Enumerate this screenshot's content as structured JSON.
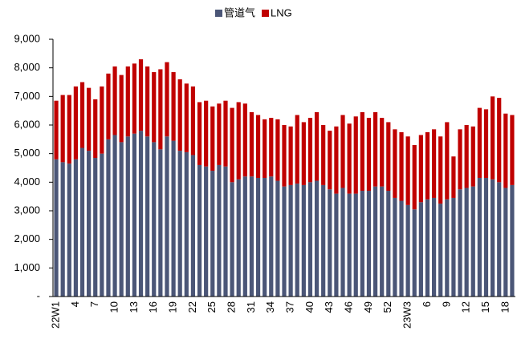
{
  "chart_data": {
    "type": "stacked_bar",
    "categories": [
      "22W1",
      null,
      null,
      "4",
      null,
      null,
      "7",
      null,
      null,
      "10",
      null,
      null,
      "13",
      null,
      null,
      "16",
      null,
      null,
      "19",
      null,
      null,
      "22",
      null,
      null,
      "25",
      null,
      null,
      "28",
      null,
      null,
      "31",
      null,
      null,
      "34",
      null,
      null,
      "37",
      null,
      null,
      "40",
      null,
      null,
      "43",
      null,
      null,
      "46",
      null,
      null,
      "49",
      null,
      null,
      "52",
      null,
      null,
      "23W3",
      null,
      null,
      "6",
      null,
      null,
      "9",
      null,
      null,
      "12",
      null,
      null,
      "15",
      null,
      null,
      "18",
      null
    ],
    "series": [
      {
        "name": "管道气",
        "color": "#4b5677",
        "values": [
          4800,
          4700,
          4650,
          4800,
          5200,
          5100,
          4850,
          5000,
          5500,
          5650,
          5400,
          5600,
          5700,
          5800,
          5600,
          5400,
          5150,
          5600,
          5450,
          5100,
          5050,
          4950,
          4600,
          4550,
          4400,
          4600,
          4550,
          4000,
          4100,
          4200,
          4200,
          4150,
          4150,
          4200,
          4050,
          3850,
          3900,
          3950,
          3900,
          4000,
          4050,
          3900,
          3750,
          3600,
          3800,
          3600,
          3600,
          3700,
          3700,
          3850,
          3850,
          3700,
          3450,
          3350,
          3200,
          3050,
          3300,
          3400,
          3450,
          3250,
          3400,
          3450,
          3750,
          3800,
          3850,
          4150,
          4150,
          4100,
          4000,
          3800,
          3900
        ]
      },
      {
        "name": "LNG",
        "color": "#c00000",
        "values": [
          2050,
          2350,
          2400,
          2550,
          2300,
          2200,
          2050,
          2350,
          2300,
          2400,
          2350,
          2450,
          2450,
          2500,
          2450,
          2450,
          2800,
          2600,
          2400,
          2500,
          2400,
          2400,
          2200,
          2300,
          2250,
          2150,
          2300,
          2600,
          2700,
          2550,
          2250,
          2200,
          2050,
          2050,
          2150,
          2150,
          2050,
          2400,
          2200,
          2250,
          2400,
          2100,
          2050,
          2350,
          2550,
          2450,
          2700,
          2750,
          2550,
          2600,
          2400,
          2400,
          2400,
          2400,
          2400,
          2250,
          2350,
          2350,
          2400,
          2350,
          2700,
          1450,
          2100,
          2200,
          2100,
          2450,
          2400,
          2900,
          2950,
          2600,
          2450
        ]
      }
    ],
    "ylim": [
      0,
      9000
    ],
    "yticks": [
      {
        "value": 0,
        "label": "-"
      },
      {
        "value": 1000,
        "label": "1,000"
      },
      {
        "value": 2000,
        "label": "2,000"
      },
      {
        "value": 3000,
        "label": "3,000"
      },
      {
        "value": 4000,
        "label": "4,000"
      },
      {
        "value": 5000,
        "label": "5,000"
      },
      {
        "value": 6000,
        "label": "6,000"
      },
      {
        "value": 7000,
        "label": "7,000"
      },
      {
        "value": 8000,
        "label": "8,000"
      },
      {
        "value": 9000,
        "label": "9,000"
      }
    ],
    "legend": "top"
  }
}
